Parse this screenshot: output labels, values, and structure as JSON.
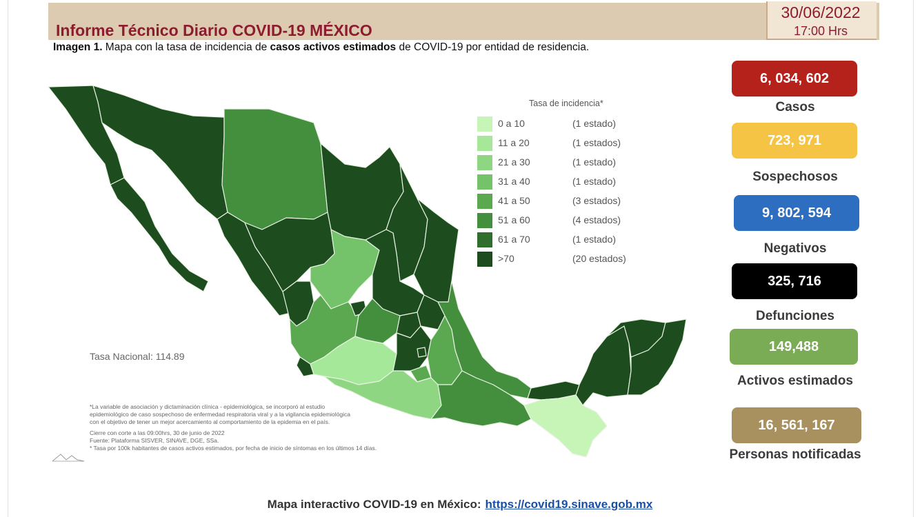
{
  "header": {
    "title": "Informe Técnico Diario COVID-19 MÉXICO",
    "date": "30/06/2022",
    "time": "17:00 Hrs"
  },
  "caption": {
    "prefix": "Imagen 1.",
    "part1": " Mapa con la tasa de incidencia de ",
    "bold": "casos activos estimados",
    "part2": " de COVID-19 por entidad de residencia."
  },
  "legend": {
    "title": "Tasa de incidencia*",
    "items": [
      {
        "range": "0 a  10",
        "count": "(1 estado)",
        "color": "#c7f5b8"
      },
      {
        "range": "11 a  20",
        "count": "(1 estados)",
        "color": "#a6e89a"
      },
      {
        "range": "21 a  30",
        "count": "(1 estado)",
        "color": "#8fd682"
      },
      {
        "range": "31 a  40",
        "count": "(1 estado)",
        "color": "#74c26a"
      },
      {
        "range": "41 a  50",
        "count": "(3 estados)",
        "color": "#5aa951"
      },
      {
        "range": "51 a  60",
        "count": "(4 estados)",
        "color": "#448f3e"
      },
      {
        "range": "61 a  70",
        "count": "(1 estado)",
        "color": "#2f6e2c"
      },
      {
        "range": ">70",
        "count": "(20 estados)",
        "color": "#1d4d1e"
      }
    ]
  },
  "tasa_nacional": "Tasa Nacional: 114.89",
  "notes": [
    "*La variable de asociación y dictaminación clínica - epidemiológica, se incorporó al estudio",
    "epidemiológico de caso sospechoso de enfermedad respiratoria viral y a la vigilancia epidemiológica",
    "con el objetivo de tener un mejor acercamiento al comportamiento de la epidemia en el país.",
    "Cierre con corte a las 09:00hrs, 30 de junio de 2022",
    "Fuente: Plataforma SISVER, SINAVE, DGE, SSa.",
    "* Tasa por 100k habitantes de casos activos estimados, por fecha de inicio de síntomas en los últimos 14 días."
  ],
  "stats": [
    {
      "value": "6, 034, 602",
      "label": "Casos",
      "color": "#b5211b"
    },
    {
      "value": "723, 971",
      "label": "Sospechosos",
      "color": "#f5c445"
    },
    {
      "value": "9, 802, 594",
      "label": "Negativos",
      "color": "#2e6ec0"
    },
    {
      "value": "325, 716",
      "label": "Defunciones",
      "color": "#000000"
    },
    {
      "value": "149,488",
      "label": "Activos estimados",
      "color": "#7aab55"
    },
    {
      "value": "16, 561, 167",
      "label": "Personas notificadas",
      "color": "#a8905f"
    }
  ],
  "footer": {
    "text": "Mapa interactivo COVID-19 en México:",
    "link": "https://covid19.sinave.gob.mx"
  }
}
